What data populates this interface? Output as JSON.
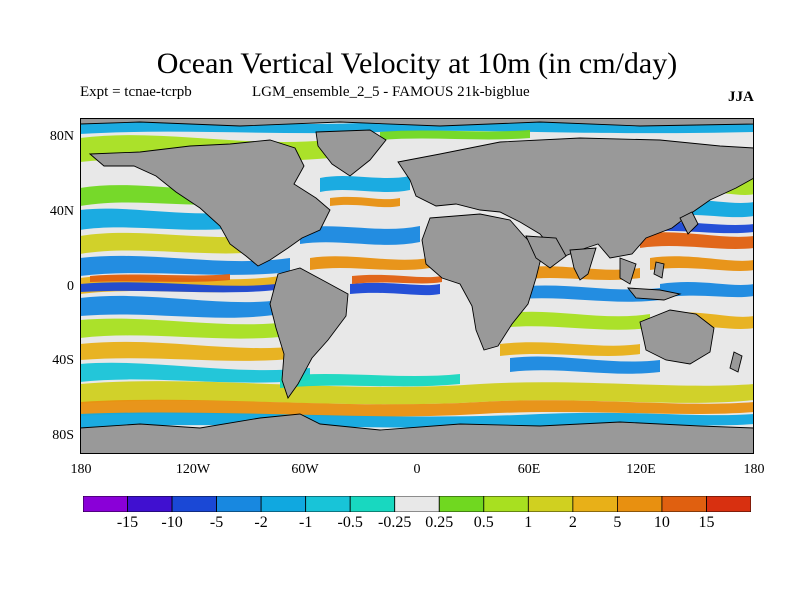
{
  "title": "Ocean Vertical Velocity at 10m (in cm/day)",
  "experiment": "Expt = tcnae-tcrpb",
  "run": "LGM_ensemble_2_5 - FAMOUS 21k-bigblue",
  "season": "JJA",
  "lat_labels": [
    "80N",
    "40N",
    "0",
    "40S",
    "80S"
  ],
  "lon_labels": [
    "180",
    "120W",
    "60W",
    "0",
    "60E",
    "120E",
    "180"
  ],
  "colorbar": {
    "colors": [
      "#8a00d8",
      "#4010d0",
      "#1a48d6",
      "#1888e0",
      "#10a8e0",
      "#18c4d8",
      "#18d8c0",
      "#e8e8e8",
      "#70d820",
      "#a8e020",
      "#d0d020",
      "#e8b018",
      "#e89010",
      "#e06010",
      "#d83010"
    ],
    "labels": [
      "-15",
      "-10",
      "-5",
      "-2",
      "-1",
      "-0.5",
      "-0.25",
      "0.25",
      "0.5",
      "1",
      "2",
      "5",
      "10",
      "15"
    ]
  },
  "land_color": "#999999"
}
